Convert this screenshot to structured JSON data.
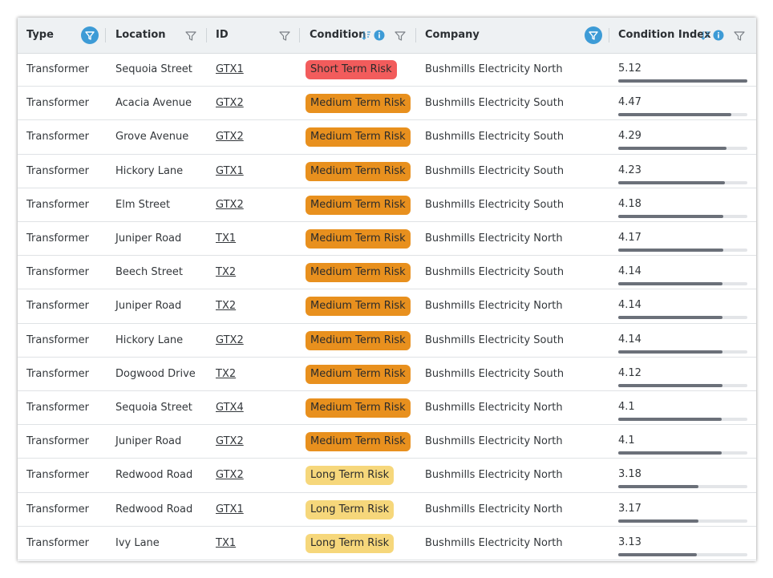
{
  "table": {
    "columns": [
      "Type",
      "Location",
      "ID",
      "Condition",
      "Company",
      "Condition Index"
    ],
    "rows": [
      {
        "type": "Transformer",
        "location": "Sequoia Street",
        "id": "GTX1",
        "condition": "Short Term Risk",
        "company": "Bushmills Electricity North",
        "condition_index": 5.12
      },
      {
        "type": "Transformer",
        "location": "Acacia Avenue",
        "id": "GTX2",
        "condition": "Medium Term Risk",
        "company": "Bushmills Electricity South",
        "condition_index": 4.47
      },
      {
        "type": "Transformer",
        "location": "Grove Avenue",
        "id": "GTX2",
        "condition": "Medium Term Risk",
        "company": "Bushmills Electricity South",
        "condition_index": 4.29
      },
      {
        "type": "Transformer",
        "location": "Hickory Lane",
        "id": "GTX1",
        "condition": "Medium Term Risk",
        "company": "Bushmills Electricity South",
        "condition_index": 4.23
      },
      {
        "type": "Transformer",
        "location": "Elm Street",
        "id": "GTX2",
        "condition": "Medium Term Risk",
        "company": "Bushmills Electricity South",
        "condition_index": 4.18
      },
      {
        "type": "Transformer",
        "location": "Juniper Road",
        "id": "TX1",
        "condition": "Medium Term Risk",
        "company": "Bushmills Electricity North",
        "condition_index": 4.17
      },
      {
        "type": "Transformer",
        "location": "Beech Street",
        "id": "TX2",
        "condition": "Medium Term Risk",
        "company": "Bushmills Electricity South",
        "condition_index": 4.14
      },
      {
        "type": "Transformer",
        "location": "Juniper Road",
        "id": "TX2",
        "condition": "Medium Term Risk",
        "company": "Bushmills Electricity North",
        "condition_index": 4.14
      },
      {
        "type": "Transformer",
        "location": "Hickory Lane",
        "id": "GTX2",
        "condition": "Medium Term Risk",
        "company": "Bushmills Electricity South",
        "condition_index": 4.14
      },
      {
        "type": "Transformer",
        "location": "Dogwood Drive",
        "id": "TX2",
        "condition": "Medium Term Risk",
        "company": "Bushmills Electricity South",
        "condition_index": 4.12
      },
      {
        "type": "Transformer",
        "location": "Sequoia Street",
        "id": "GTX4",
        "condition": "Medium Term Risk",
        "company": "Bushmills Electricity North",
        "condition_index": 4.1
      },
      {
        "type": "Transformer",
        "location": "Juniper Road",
        "id": "GTX2",
        "condition": "Medium Term Risk",
        "company": "Bushmills Electricity North",
        "condition_index": 4.1
      },
      {
        "type": "Transformer",
        "location": "Redwood Road",
        "id": "GTX2",
        "condition": "Long Term Risk",
        "company": "Bushmills Electricity North",
        "condition_index": 3.18
      },
      {
        "type": "Transformer",
        "location": "Redwood Road",
        "id": "GTX1",
        "condition": "Long Term Risk",
        "company": "Bushmills Electricity North",
        "condition_index": 3.17
      },
      {
        "type": "Transformer",
        "location": "Ivy Lane",
        "id": "TX1",
        "condition": "Long Term Risk",
        "company": "Bushmills Electricity North",
        "condition_index": 3.13
      }
    ]
  }
}
